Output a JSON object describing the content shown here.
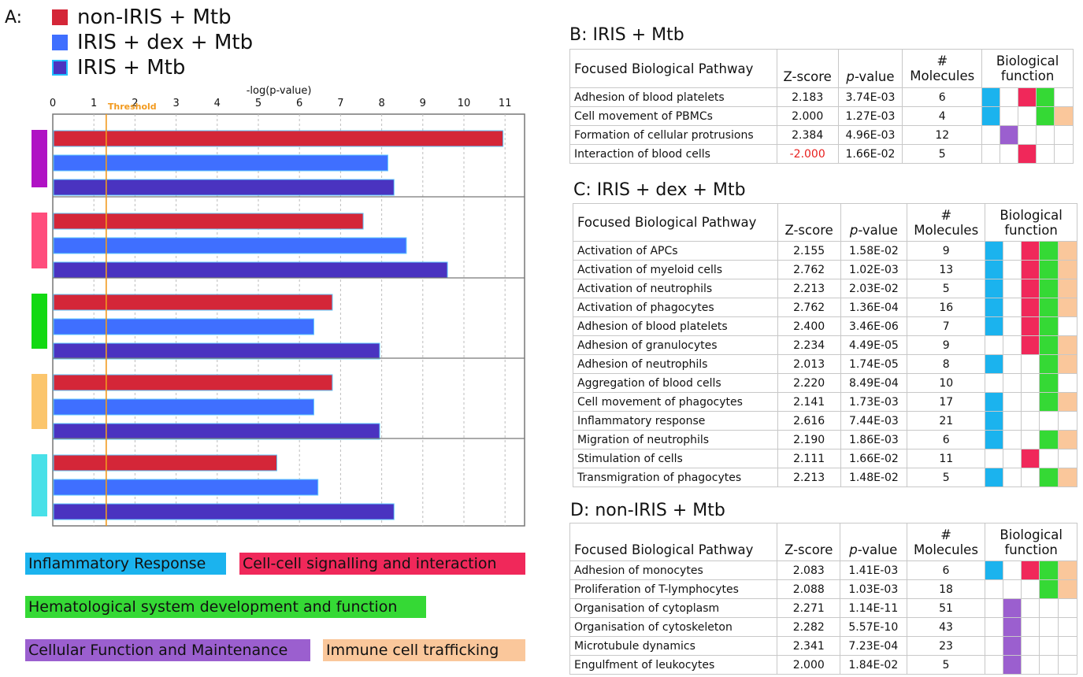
{
  "colors": {
    "inflammatory": "#1bb3ee",
    "cellcell": "#f0285a",
    "hematological": "#35d935",
    "cellular": "#9b5fcf",
    "immune": "#fac79b",
    "non_iris": "#d42638",
    "iris_dex": "#3f6fff",
    "iris": "#4a33c0",
    "threshold": "#f29a1e"
  },
  "panel_a": {
    "letter": "A:",
    "legend": [
      {
        "label": "non-IRIS + Mtb",
        "color": "#d42638"
      },
      {
        "label": "IRIS + dex + Mtb",
        "color": "#3f6fff"
      },
      {
        "label": "IRIS + Mtb",
        "color": "#4a33c0"
      }
    ]
  },
  "chart_data": {
    "type": "bar",
    "orientation": "horizontal",
    "title": "-log(p-value)",
    "threshold_label": "Threshold",
    "threshold": 1.3,
    "xlim": [
      0,
      11.5
    ],
    "xticks": [
      0,
      1,
      2,
      3,
      4,
      5,
      6,
      7,
      8,
      9,
      10,
      11
    ],
    "grid": true,
    "categories": [
      "Cellular Function and Maintenance",
      "Cell-cell signalling and interaction",
      "Hematological system development and function",
      "Immune cell trafficking",
      "Inflammatory Response"
    ],
    "category_colors": [
      "#b012c4",
      "#ff4d7c",
      "#12d912",
      "#fbc56c",
      "#48e0e8"
    ],
    "series": [
      {
        "name": "non-IRIS + Mtb",
        "color": "#d42638",
        "values": [
          10.95,
          7.55,
          6.8,
          6.8,
          5.45
        ]
      },
      {
        "name": "IRIS + dex + Mtb",
        "color": "#3f6fff",
        "values": [
          8.15,
          8.6,
          6.35,
          6.35,
          6.45
        ]
      },
      {
        "name": "IRIS + Mtb",
        "color": "#4a33c0",
        "values": [
          8.3,
          9.6,
          7.95,
          7.95,
          8.3
        ]
      }
    ]
  },
  "category_key": {
    "inflammatory": "Inflammatory Response",
    "cellcell": "Cell-cell signalling and interaction",
    "hematological": "Hematological system development and function",
    "cellular": "Cellular Function and Maintenance",
    "immune": "Immune cell trafficking"
  },
  "table_header": {
    "pathway": "Focused Biological Pathway",
    "zscore": "Z-score",
    "p_italic": "p",
    "p_rest": "-value",
    "mol_hash": "#",
    "mol_word": "Molecules",
    "func_line1": "Biological",
    "func_line2": "function"
  },
  "panel_b": {
    "title": "B: IRIS + Mtb",
    "rows": [
      {
        "pathway": "Adhesion of blood platelets",
        "z": "2.183",
        "p": "3.74E-03",
        "m": "6",
        "f": [
          "inflammatory",
          "",
          "cellcell",
          "hematological",
          ""
        ]
      },
      {
        "pathway": "Cell movement of PBMCs",
        "z": "2.000",
        "p": "1.27E-03",
        "m": "4",
        "f": [
          "inflammatory",
          "",
          "",
          "hematological",
          "immune"
        ]
      },
      {
        "pathway": "Formation of cellular protrusions",
        "z": "2.384",
        "p": "4.96E-03",
        "m": "12",
        "f": [
          "",
          "cellular",
          "",
          "",
          ""
        ]
      },
      {
        "pathway": "Interaction of blood cells",
        "z": "-2.000",
        "p": "1.66E-02",
        "m": "5",
        "f": [
          "",
          "",
          "cellcell",
          "",
          ""
        ]
      }
    ]
  },
  "panel_c": {
    "title": "C: IRIS + dex + Mtb",
    "rows": [
      {
        "pathway": "Activation of APCs",
        "z": "2.155",
        "p": "1.58E-02",
        "m": "9",
        "f": [
          "inflammatory",
          "",
          "cellcell",
          "hematological",
          "immune"
        ]
      },
      {
        "pathway": "Activation of myeloid cells",
        "z": "2.762",
        "p": "1.02E-03",
        "m": "13",
        "f": [
          "inflammatory",
          "",
          "cellcell",
          "hematological",
          "immune"
        ]
      },
      {
        "pathway": "Activation of neutrophils",
        "z": "2.213",
        "p": "2.03E-02",
        "m": "5",
        "f": [
          "inflammatory",
          "",
          "cellcell",
          "hematological",
          "immune"
        ]
      },
      {
        "pathway": "Activation of phagocytes",
        "z": "2.762",
        "p": "1.36E-04",
        "m": "16",
        "f": [
          "inflammatory",
          "",
          "cellcell",
          "hematological",
          "immune"
        ]
      },
      {
        "pathway": "Adhesion of blood platelets",
        "z": "2.400",
        "p": "3.46E-06",
        "m": "7",
        "f": [
          "inflammatory",
          "",
          "cellcell",
          "hematological",
          ""
        ]
      },
      {
        "pathway": "Adhesion of granulocytes",
        "z": "2.234",
        "p": "4.49E-05",
        "m": "9",
        "f": [
          "",
          "",
          "cellcell",
          "hematological",
          "immune"
        ]
      },
      {
        "pathway": "Adhesion of neutrophils",
        "z": "2.013",
        "p": "1.74E-05",
        "m": "8",
        "f": [
          "inflammatory",
          "",
          "",
          "hematological",
          "immune"
        ]
      },
      {
        "pathway": "Aggregation of blood cells",
        "z": "2.220",
        "p": "8.49E-04",
        "m": "10",
        "f": [
          "",
          "",
          "",
          "hematological",
          ""
        ]
      },
      {
        "pathway": "Cell movement of phagocytes",
        "z": "2.141",
        "p": "1.73E-03",
        "m": "17",
        "f": [
          "inflammatory",
          "",
          "",
          "hematological",
          "immune"
        ]
      },
      {
        "pathway": "Inflammatory response",
        "z": "2.616",
        "p": "7.44E-03",
        "m": "21",
        "f": [
          "inflammatory",
          "",
          "",
          "",
          ""
        ]
      },
      {
        "pathway": "Migration of neutrophils",
        "z": "2.190",
        "p": "1.86E-03",
        "m": "6",
        "f": [
          "inflammatory",
          "",
          "",
          "hematological",
          "immune"
        ]
      },
      {
        "pathway": "Stimulation of cells",
        "z": "2.111",
        "p": "1.66E-02",
        "m": "11",
        "f": [
          "",
          "",
          "cellcell",
          "",
          ""
        ]
      },
      {
        "pathway": "Transmigration of phagocytes",
        "z": "2.213",
        "p": "1.48E-02",
        "m": "5",
        "f": [
          "inflammatory",
          "",
          "",
          "hematological",
          "immune"
        ]
      }
    ]
  },
  "panel_d": {
    "title": "D: non-IRIS + Mtb",
    "rows": [
      {
        "pathway": "Adhesion of monocytes",
        "z": "2.083",
        "p": "1.41E-03",
        "m": "6",
        "f": [
          "inflammatory",
          "",
          "cellcell",
          "hematological",
          "immune"
        ]
      },
      {
        "pathway": "Proliferation of T-lymphocytes",
        "z": "2.088",
        "p": "1.03E-03",
        "m": "18",
        "f": [
          "",
          "",
          "",
          "hematological",
          "immune"
        ]
      },
      {
        "pathway": "Organisation of cytoplasm",
        "z": "2.271",
        "p": "1.14E-11",
        "m": "51",
        "f": [
          "",
          "cellular",
          "",
          "",
          ""
        ]
      },
      {
        "pathway": "Organisation of cytoskeleton",
        "z": "2.282",
        "p": "5.57E-10",
        "m": "43",
        "f": [
          "",
          "cellular",
          "",
          "",
          ""
        ]
      },
      {
        "pathway": "Microtubule dynamics",
        "z": "2.341",
        "p": "7.23E-04",
        "m": "23",
        "f": [
          "",
          "cellular",
          "",
          "",
          ""
        ]
      },
      {
        "pathway": "Engulfment of leukocytes",
        "z": "2.000",
        "p": "1.84E-02",
        "m": "5",
        "f": [
          "",
          "cellular",
          "",
          "",
          ""
        ]
      }
    ]
  }
}
